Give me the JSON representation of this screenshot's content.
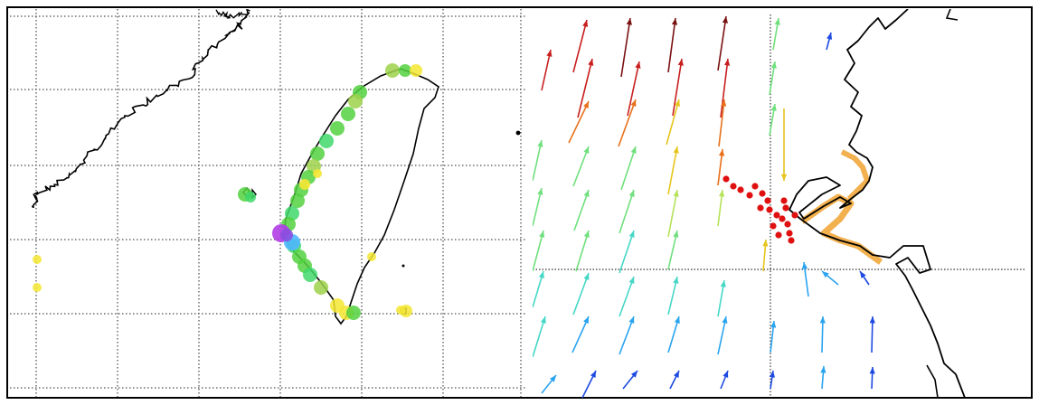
{
  "panels": [
    {
      "id": "left",
      "description_name": "regional-map",
      "grid": true,
      "colors": {
        "coast": "#000000",
        "grid": "#222222",
        "markers": [
          "#f4e633",
          "#9ed24a",
          "#52d13f",
          "#3fd86b",
          "#4fb7ff",
          "#8a4fe0",
          "#b13de6"
        ]
      }
    },
    {
      "id": "right",
      "description_name": "wind-vector-field",
      "grid": true,
      "colors": {
        "coast": "#000000",
        "grid": "#333333",
        "points": "#e01010",
        "coast_highlight": "#f0a230",
        "vectors": [
          "#7a1212",
          "#c81e1e",
          "#e8701a",
          "#e6c51d",
          "#b6e25a",
          "#6fe07d",
          "#45d7c6",
          "#2aa4f0",
          "#1d4ae0"
        ]
      }
    }
  ]
}
